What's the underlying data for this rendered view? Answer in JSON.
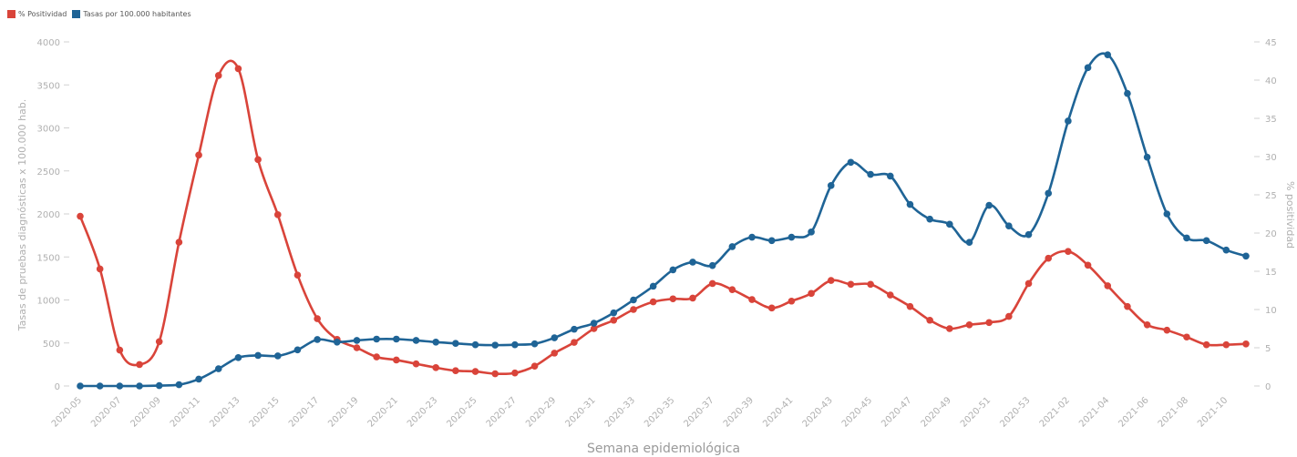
{
  "chart_data": {
    "type": "line",
    "xlabel": "Semana epidemiológica",
    "ylabel_left": "Tasas de pruebas diagnósticas x 100.000 hab.",
    "ylabel_right": "% positividad",
    "ylim_left": [
      0,
      4000
    ],
    "ylim_right": [
      0,
      45
    ],
    "y_ticks_left": [
      "0",
      "500",
      "1000",
      "1500",
      "2000",
      "2500",
      "3000",
      "3500",
      "4000"
    ],
    "y_ticks_right": [
      "0",
      "5",
      "10",
      "15",
      "20",
      "25",
      "30",
      "35",
      "40",
      "45"
    ],
    "legend_position": "top-left",
    "grid": false,
    "categories": [
      "2020-05",
      "2020-06",
      "2020-07",
      "2020-08",
      "2020-09",
      "2020-10",
      "2020-11",
      "2020-12",
      "2020-13",
      "2020-14",
      "2020-15",
      "2020-16",
      "2020-17",
      "2020-18",
      "2020-19",
      "2020-20",
      "2020-21",
      "2020-22",
      "2020-23",
      "2020-24",
      "2020-25",
      "2020-26",
      "2020-27",
      "2020-28",
      "2020-29",
      "2020-30",
      "2020-31",
      "2020-32",
      "2020-33",
      "2020-34",
      "2020-35",
      "2020-36",
      "2020-37",
      "2020-38",
      "2020-39",
      "2020-40",
      "2020-41",
      "2020-42",
      "2020-43",
      "2020-44",
      "2020-45",
      "2020-46",
      "2020-47",
      "2020-48",
      "2020-49",
      "2020-50",
      "2020-51",
      "2020-52",
      "2020-53",
      "2021-01",
      "2021-02",
      "2021-03",
      "2021-04",
      "2021-05",
      "2021-06",
      "2021-07",
      "2021-08",
      "2021-09",
      "2021-10",
      "2021-11"
    ],
    "tick_labels": [
      "2020-05",
      "2020-07",
      "2020-09",
      "2020-11",
      "2020-13",
      "2020-15",
      "2020-17",
      "2020-19",
      "2020-21",
      "2020-23",
      "2020-25",
      "2020-27",
      "2020-29",
      "2020-31",
      "2020-33",
      "2020-35",
      "2020-37",
      "2020-39",
      "2020-41",
      "2020-43",
      "2020-45",
      "2020-47",
      "2020-49",
      "2020-51",
      "2020-53",
      "2021-02",
      "2021-04",
      "2021-06",
      "2021-08",
      "2021-10"
    ],
    "series": [
      {
        "name": "% Positividad",
        "axis": "right",
        "color": "#d9443a",
        "values": [
          22.2,
          15.3,
          4.7,
          2.8,
          5.8,
          18.8,
          30.2,
          40.6,
          41.5,
          29.6,
          22.4,
          14.5,
          8.8,
          6.1,
          5.0,
          3.8,
          3.4,
          2.9,
          2.4,
          2.0,
          1.9,
          1.6,
          1.7,
          2.6,
          4.3,
          5.7,
          7.5,
          8.6,
          10.0,
          11.0,
          11.4,
          11.5,
          13.4,
          12.6,
          11.3,
          10.2,
          11.1,
          12.1,
          13.8,
          13.3,
          13.3,
          11.9,
          10.4,
          8.6,
          7.5,
          8.0,
          8.3,
          9.1,
          13.4,
          16.7,
          17.6,
          15.8,
          13.1,
          10.4,
          8.0,
          7.3,
          6.4,
          5.4,
          5.4,
          5.5
        ]
      },
      {
        "name": "Tasas por 100.000 habitantes",
        "axis": "left",
        "color": "#1f6496",
        "values": [
          0,
          0,
          0,
          0,
          5,
          15,
          80,
          200,
          330,
          355,
          350,
          420,
          540,
          510,
          530,
          545,
          545,
          530,
          510,
          495,
          480,
          475,
          480,
          490,
          560,
          660,
          730,
          850,
          1000,
          1160,
          1350,
          1440,
          1400,
          1620,
          1730,
          1690,
          1730,
          1790,
          2330,
          2600,
          2460,
          2440,
          2110,
          1940,
          1880,
          1670,
          2100,
          1860,
          1760,
          2240,
          3080,
          3700,
          3850,
          3400,
          2660,
          2000,
          1720,
          1690,
          1580,
          1510
        ]
      }
    ]
  }
}
